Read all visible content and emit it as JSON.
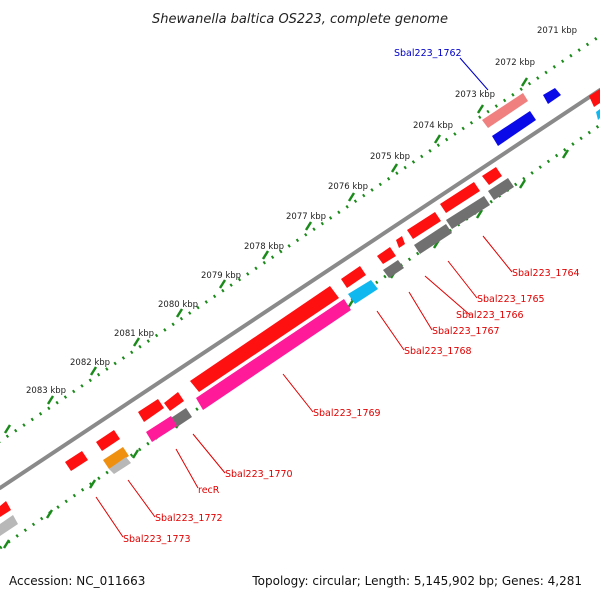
{
  "title": "Shewanella baltica OS223, complete genome",
  "footer": {
    "accession": "Accession: NC_011663",
    "topology": "Topology: circular; Length: 5,145,902 bp; Genes: 4,281"
  },
  "colors": {
    "backbone": "#8a8a8a",
    "tick_dots": "#1a8a1a",
    "gene_red": "#ff1010",
    "gene_blue": "#0a0ae8",
    "gene_salmon": "#f08080",
    "gene_magenta": "#ff1a9a",
    "gene_gray": "#707070",
    "gene_cyan": "#10b8f0",
    "gene_orange": "#f09010",
    "gene_lightgray": "#b8b8b8",
    "label_red": "#e00000",
    "label_blue": "#0000c8"
  },
  "tick_labels": [
    "2071 kbp",
    "2072 kbp",
    "2073 kbp",
    "2074 kbp",
    "2075 kbp",
    "2076 kbp",
    "2077 kbp",
    "2078 kbp",
    "2079 kbp",
    "2080 kbp",
    "2081 kbp",
    "2082 kbp",
    "2083 kbp"
  ],
  "gene_labels": [
    {
      "id": "g1762",
      "text": "Sbal223_1762",
      "color": "blue"
    },
    {
      "id": "g1764",
      "text": "Sbal223_1764",
      "color": "red"
    },
    {
      "id": "g1765",
      "text": "Sbal223_1765",
      "color": "red"
    },
    {
      "id": "g1766",
      "text": "Sbal223_1766",
      "color": "red"
    },
    {
      "id": "g1767",
      "text": "Sbal223_1767",
      "color": "red"
    },
    {
      "id": "g1768",
      "text": "Sbal223_1768",
      "color": "red"
    },
    {
      "id": "g1769",
      "text": "Sbal223_1769",
      "color": "red"
    },
    {
      "id": "g1770",
      "text": "Sbal223_1770",
      "color": "red"
    },
    {
      "id": "grecR",
      "text": "recR",
      "color": "red"
    },
    {
      "id": "g1772",
      "text": "Sbal223_1772",
      "color": "red"
    },
    {
      "id": "g1773",
      "text": "Sbal223_1773",
      "color": "red"
    }
  ]
}
